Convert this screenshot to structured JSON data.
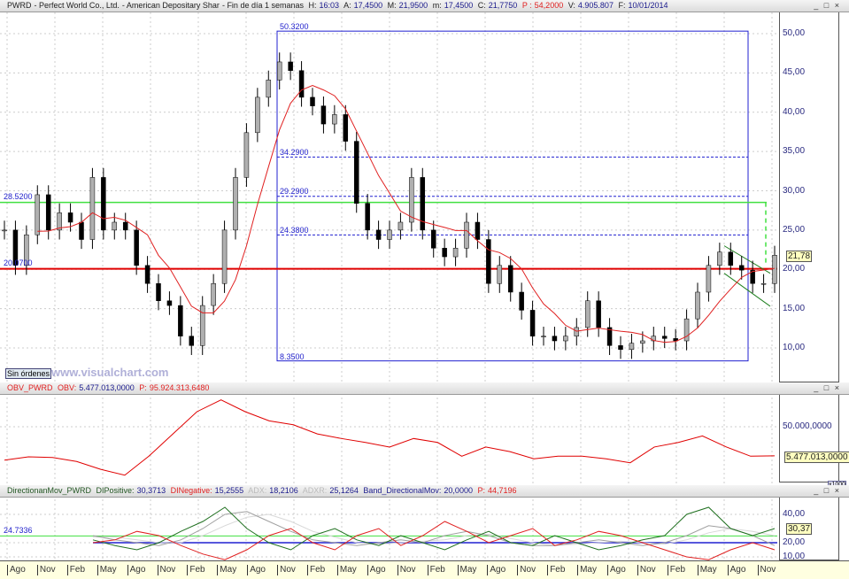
{
  "header": {
    "symbol": "PWRD",
    "name": "Perfect World Co., Ltd.",
    "desc": "American Depositary Shar",
    "period": "Fin de día 1 semanas",
    "h_label": "H:",
    "h": "16:03",
    "a_label": "A:",
    "a": "17,4500",
    "m_label": "M:",
    "m": "21,9500",
    "mi_label": "m:",
    "mi": "17,4500",
    "c_label": "C:",
    "c": "21,7750",
    "p_label": "P :",
    "p": "54,2000",
    "v_label": "V:",
    "v": "4.905.807",
    "f_label": "F:",
    "f": "10/01/2014"
  },
  "window_buttons": "_ □ ×",
  "price_axis": [
    "50,00",
    "45,00",
    "40,00",
    "35,00",
    "30,00",
    "25,00",
    "20,00",
    "15,00",
    "10,00"
  ],
  "last_price_tag": "21,78",
  "levels": {
    "high": "50.3200",
    "low": "8.3500",
    "l1": "34.2900",
    "l2": "29.2900",
    "l3": "24.3800",
    "green": "28.5200",
    "red": "20.0700"
  },
  "sin_ordenes": "Sin órdenes",
  "watermark": "www.visualchart.com",
  "obv": {
    "name": "OBV_PWRD",
    "obv_label": "OBV:",
    "obv": "5.477.013,0000",
    "p_label": "P:",
    "p": "95.924.313,6480",
    "axis": [
      "50.000,0000"
    ],
    "tag": "5.477.013,0000",
    "scale": "x1000"
  },
  "dmi": {
    "name": "DirectionanMov_PWRD",
    "dip_label": "DIPositive:",
    "dip": "30,3713",
    "din_label": "DINegative:",
    "din": "15,2555",
    "adx_label": "ADX:",
    "adx": "18,2106",
    "adxr_label": "ADXR:",
    "adxr": "25,1264",
    "band_label": "Band_DirectionalMov:",
    "band": "20,0000",
    "p_label": "P:",
    "p": "44,7196",
    "axis": [
      "40,00",
      "20,00",
      "10,00"
    ],
    "tag": "30,37",
    "level": "24.7336"
  },
  "x_labels": [
    "Ago",
    "Nov",
    "Feb",
    "May",
    "Ago",
    "Nov",
    "Feb",
    "May",
    "Ago",
    "Nov",
    "Feb",
    "May",
    "Ago",
    "Nov",
    "Feb",
    "May",
    "Ago",
    "Nov",
    "Feb",
    "May",
    "Ago",
    "Nov",
    "Feb",
    "May",
    "Ago",
    "Nov"
  ],
  "colors": {
    "up": "#b0b0b0",
    "down": "#000000",
    "ma": "#e02020",
    "green": "#40e040",
    "red": "#e00000",
    "blue": "#2020d0"
  },
  "chart_data": {
    "type": "candlestick",
    "ylim": [
      8,
      52
    ],
    "close": [
      25,
      20.5,
      24.4,
      29.5,
      25,
      27.2,
      26,
      23.8,
      31.7,
      25,
      26,
      25,
      20.5,
      18.2,
      16,
      15.4,
      11.5,
      10.3,
      15.4,
      18.2,
      25,
      31.7,
      37.4,
      41.9,
      44.1,
      46.4,
      45.3,
      41.9,
      40.8,
      38.5,
      39.7,
      36.3,
      28.4,
      25,
      23.8,
      25,
      26,
      31.7,
      25,
      22.7,
      21.6,
      22.7,
      26,
      23.8,
      18.2,
      20.5,
      17.1,
      14.8,
      11.5,
      11.5,
      10.9,
      11.5,
      12.6,
      16,
      12.6,
      10.3,
      9.8,
      10.6,
      10.9,
      11.5,
      11.2,
      10.9,
      13.7,
      17.1,
      20.5,
      22.2,
      20.5,
      19.9,
      18.2,
      18.2,
      21.8
    ],
    "obv_millions": [
      -1,
      4,
      3,
      -3,
      -15,
      -24,
      5,
      39,
      73,
      91,
      73,
      59,
      53,
      39,
      32,
      26,
      19,
      32,
      26,
      5,
      19,
      12,
      1,
      5,
      5,
      1,
      -5,
      19,
      26,
      36,
      19,
      5,
      5.5
    ],
    "di_positive": [
      22,
      18,
      15,
      20,
      28,
      35,
      45,
      30,
      20,
      15,
      25,
      30,
      22,
      18,
      25,
      20,
      15,
      22,
      28,
      20,
      18,
      25,
      20,
      15,
      18,
      22,
      25,
      40,
      45,
      30,
      25,
      30
    ],
    "di_negative": [
      20,
      22,
      28,
      25,
      18,
      12,
      8,
      15,
      25,
      30,
      20,
      15,
      25,
      30,
      18,
      25,
      35,
      28,
      20,
      25,
      30,
      18,
      22,
      28,
      25,
      20,
      15,
      10,
      8,
      15,
      20,
      15
    ],
    "adx": [
      25,
      22,
      20,
      18,
      22,
      30,
      40,
      42,
      35,
      28,
      22,
      20,
      18,
      20,
      22,
      20,
      25,
      28,
      25,
      20,
      18,
      18,
      20,
      22,
      20,
      18,
      20,
      25,
      32,
      30,
      25,
      18
    ],
    "adxr": [
      24,
      24,
      22,
      20,
      20,
      25,
      32,
      38,
      40,
      35,
      28,
      24,
      20,
      19,
      20,
      21,
      22,
      25,
      26,
      23,
      20,
      18,
      19,
      20,
      21,
      20,
      19,
      22,
      27,
      30,
      28,
      25
    ],
    "band": 20
  }
}
